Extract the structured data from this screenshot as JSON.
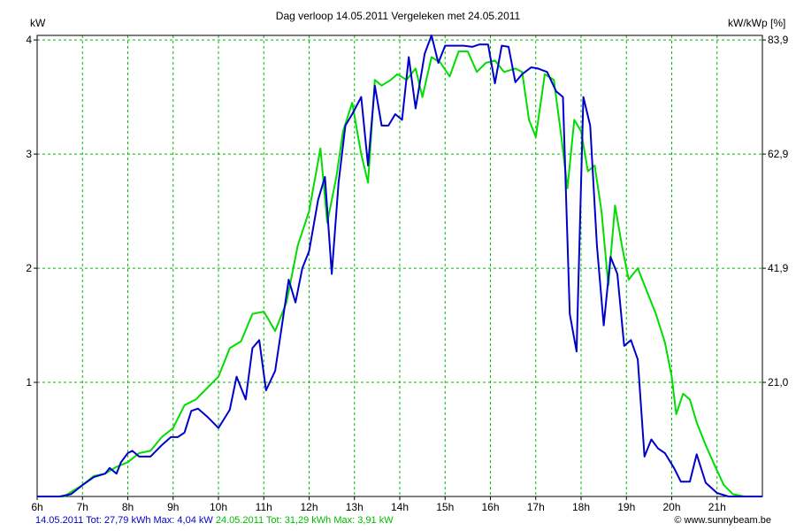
{
  "chart_data": {
    "type": "line",
    "title": "Dag  verloop 14.05.2011   Vergeleken met 24.05.2011",
    "ylabel_left": "kW",
    "ylabel_right": "kW/kWp [%]",
    "xlim": [
      6,
      22
    ],
    "ylim": [
      0,
      4.04
    ],
    "x_ticks": [
      6,
      7,
      8,
      9,
      10,
      11,
      12,
      13,
      14,
      15,
      16,
      17,
      18,
      19,
      20,
      21
    ],
    "x_tick_labels": [
      "6h",
      "7h",
      "8h",
      "9h",
      "10h",
      "11h",
      "12h",
      "13h",
      "14h",
      "15h",
      "16h",
      "17h",
      "18h",
      "19h",
      "20h",
      "21h"
    ],
    "y_ticks": [
      1,
      2,
      3,
      4
    ],
    "y_tick_labels": [
      "1",
      "2",
      "3",
      "4"
    ],
    "y_right_ticks": [
      1,
      2,
      3,
      4
    ],
    "y_right_tick_labels": [
      "21,0",
      "41,9",
      "62,9",
      "83,9"
    ],
    "grid": true,
    "series": [
      {
        "name": "14.05.2011",
        "color": "#0000cc",
        "points": [
          [
            6.0,
            0
          ],
          [
            6.5,
            0
          ],
          [
            6.75,
            0.02
          ],
          [
            7.0,
            0.1
          ],
          [
            7.25,
            0.17
          ],
          [
            7.5,
            0.2
          ],
          [
            7.6,
            0.25
          ],
          [
            7.75,
            0.2
          ],
          [
            7.85,
            0.3
          ],
          [
            8.0,
            0.38
          ],
          [
            8.1,
            0.4
          ],
          [
            8.25,
            0.35
          ],
          [
            8.5,
            0.35
          ],
          [
            8.75,
            0.45
          ],
          [
            8.95,
            0.52
          ],
          [
            9.1,
            0.52
          ],
          [
            9.25,
            0.56
          ],
          [
            9.4,
            0.75
          ],
          [
            9.55,
            0.77
          ],
          [
            9.75,
            0.7
          ],
          [
            10.0,
            0.6
          ],
          [
            10.25,
            0.76
          ],
          [
            10.4,
            1.05
          ],
          [
            10.6,
            0.85
          ],
          [
            10.75,
            1.3
          ],
          [
            10.9,
            1.37
          ],
          [
            11.05,
            0.93
          ],
          [
            11.25,
            1.1
          ],
          [
            11.4,
            1.5
          ],
          [
            11.55,
            1.9
          ],
          [
            11.7,
            1.7
          ],
          [
            11.85,
            2.0
          ],
          [
            12.0,
            2.15
          ],
          [
            12.2,
            2.6
          ],
          [
            12.35,
            2.8
          ],
          [
            12.5,
            1.95
          ],
          [
            12.65,
            2.75
          ],
          [
            12.8,
            3.25
          ],
          [
            12.95,
            3.35
          ],
          [
            13.15,
            3.5
          ],
          [
            13.3,
            2.9
          ],
          [
            13.45,
            3.6
          ],
          [
            13.6,
            3.25
          ],
          [
            13.75,
            3.25
          ],
          [
            13.9,
            3.35
          ],
          [
            14.05,
            3.3
          ],
          [
            14.2,
            3.85
          ],
          [
            14.35,
            3.4
          ],
          [
            14.55,
            3.88
          ],
          [
            14.7,
            4.04
          ],
          [
            14.85,
            3.8
          ],
          [
            15.0,
            3.95
          ],
          [
            15.2,
            3.95
          ],
          [
            15.4,
            3.95
          ],
          [
            15.6,
            3.94
          ],
          [
            15.75,
            3.96
          ],
          [
            15.95,
            3.96
          ],
          [
            16.1,
            3.62
          ],
          [
            16.25,
            3.95
          ],
          [
            16.4,
            3.94
          ],
          [
            16.55,
            3.63
          ],
          [
            16.7,
            3.7
          ],
          [
            16.9,
            3.76
          ],
          [
            17.05,
            3.75
          ],
          [
            17.25,
            3.72
          ],
          [
            17.45,
            3.55
          ],
          [
            17.6,
            3.5
          ],
          [
            17.75,
            1.6
          ],
          [
            17.9,
            1.27
          ],
          [
            18.05,
            3.5
          ],
          [
            18.2,
            3.25
          ],
          [
            18.35,
            2.2
          ],
          [
            18.5,
            1.5
          ],
          [
            18.65,
            2.1
          ],
          [
            18.8,
            1.95
          ],
          [
            18.95,
            1.32
          ],
          [
            19.1,
            1.37
          ],
          [
            19.25,
            1.2
          ],
          [
            19.4,
            0.35
          ],
          [
            19.55,
            0.5
          ],
          [
            19.7,
            0.42
          ],
          [
            19.85,
            0.38
          ],
          [
            20.05,
            0.25
          ],
          [
            20.2,
            0.13
          ],
          [
            20.4,
            0.13
          ],
          [
            20.55,
            0.37
          ],
          [
            20.75,
            0.12
          ],
          [
            21.0,
            0.03
          ],
          [
            21.25,
            0.0
          ],
          [
            22.0,
            0.0
          ]
        ]
      },
      {
        "name": "24.05.2011",
        "color": "#00dd00",
        "points": [
          [
            6.0,
            0
          ],
          [
            6.6,
            0
          ],
          [
            6.75,
            0.04
          ],
          [
            7.0,
            0.1
          ],
          [
            7.25,
            0.18
          ],
          [
            7.5,
            0.2
          ],
          [
            7.75,
            0.26
          ],
          [
            8.0,
            0.3
          ],
          [
            8.25,
            0.38
          ],
          [
            8.5,
            0.4
          ],
          [
            8.75,
            0.52
          ],
          [
            9.0,
            0.6
          ],
          [
            9.25,
            0.8
          ],
          [
            9.5,
            0.85
          ],
          [
            9.75,
            0.95
          ],
          [
            10.0,
            1.05
          ],
          [
            10.25,
            1.3
          ],
          [
            10.5,
            1.36
          ],
          [
            10.75,
            1.6
          ],
          [
            11.0,
            1.62
          ],
          [
            11.25,
            1.45
          ],
          [
            11.5,
            1.7
          ],
          [
            11.75,
            2.2
          ],
          [
            12.0,
            2.5
          ],
          [
            12.25,
            3.05
          ],
          [
            12.4,
            2.4
          ],
          [
            12.6,
            2.8
          ],
          [
            12.75,
            3.2
          ],
          [
            12.95,
            3.45
          ],
          [
            13.15,
            3.0
          ],
          [
            13.3,
            2.75
          ],
          [
            13.45,
            3.65
          ],
          [
            13.6,
            3.6
          ],
          [
            13.8,
            3.65
          ],
          [
            13.95,
            3.7
          ],
          [
            14.15,
            3.65
          ],
          [
            14.35,
            3.75
          ],
          [
            14.5,
            3.5
          ],
          [
            14.7,
            3.85
          ],
          [
            14.9,
            3.8
          ],
          [
            15.1,
            3.68
          ],
          [
            15.3,
            3.9
          ],
          [
            15.5,
            3.9
          ],
          [
            15.7,
            3.72
          ],
          [
            15.9,
            3.8
          ],
          [
            16.1,
            3.82
          ],
          [
            16.3,
            3.72
          ],
          [
            16.55,
            3.75
          ],
          [
            16.7,
            3.72
          ],
          [
            16.85,
            3.3
          ],
          [
            17.0,
            3.15
          ],
          [
            17.2,
            3.7
          ],
          [
            17.4,
            3.65
          ],
          [
            17.55,
            3.2
          ],
          [
            17.7,
            2.7
          ],
          [
            17.85,
            3.3
          ],
          [
            18.0,
            3.2
          ],
          [
            18.15,
            2.85
          ],
          [
            18.3,
            2.9
          ],
          [
            18.45,
            2.5
          ],
          [
            18.6,
            1.85
          ],
          [
            18.75,
            2.55
          ],
          [
            18.9,
            2.2
          ],
          [
            19.05,
            1.9
          ],
          [
            19.25,
            2.0
          ],
          [
            19.45,
            1.8
          ],
          [
            19.65,
            1.6
          ],
          [
            19.85,
            1.35
          ],
          [
            20.0,
            1.05
          ],
          [
            20.1,
            0.72
          ],
          [
            20.25,
            0.9
          ],
          [
            20.4,
            0.85
          ],
          [
            20.55,
            0.65
          ],
          [
            20.75,
            0.45
          ],
          [
            20.95,
            0.27
          ],
          [
            21.15,
            0.1
          ],
          [
            21.35,
            0.02
          ],
          [
            21.6,
            0.0
          ],
          [
            22.0,
            0.0
          ]
        ]
      }
    ],
    "legend": {
      "left_series_text": "14.05.2011 Tot: 27,79 kWh Max: 4,04 kW",
      "right_series_text": "24.05.2011 Tot: 31,29 kWh Max: 3,91 kW"
    },
    "credit": "© www.sunnybeam.be"
  }
}
